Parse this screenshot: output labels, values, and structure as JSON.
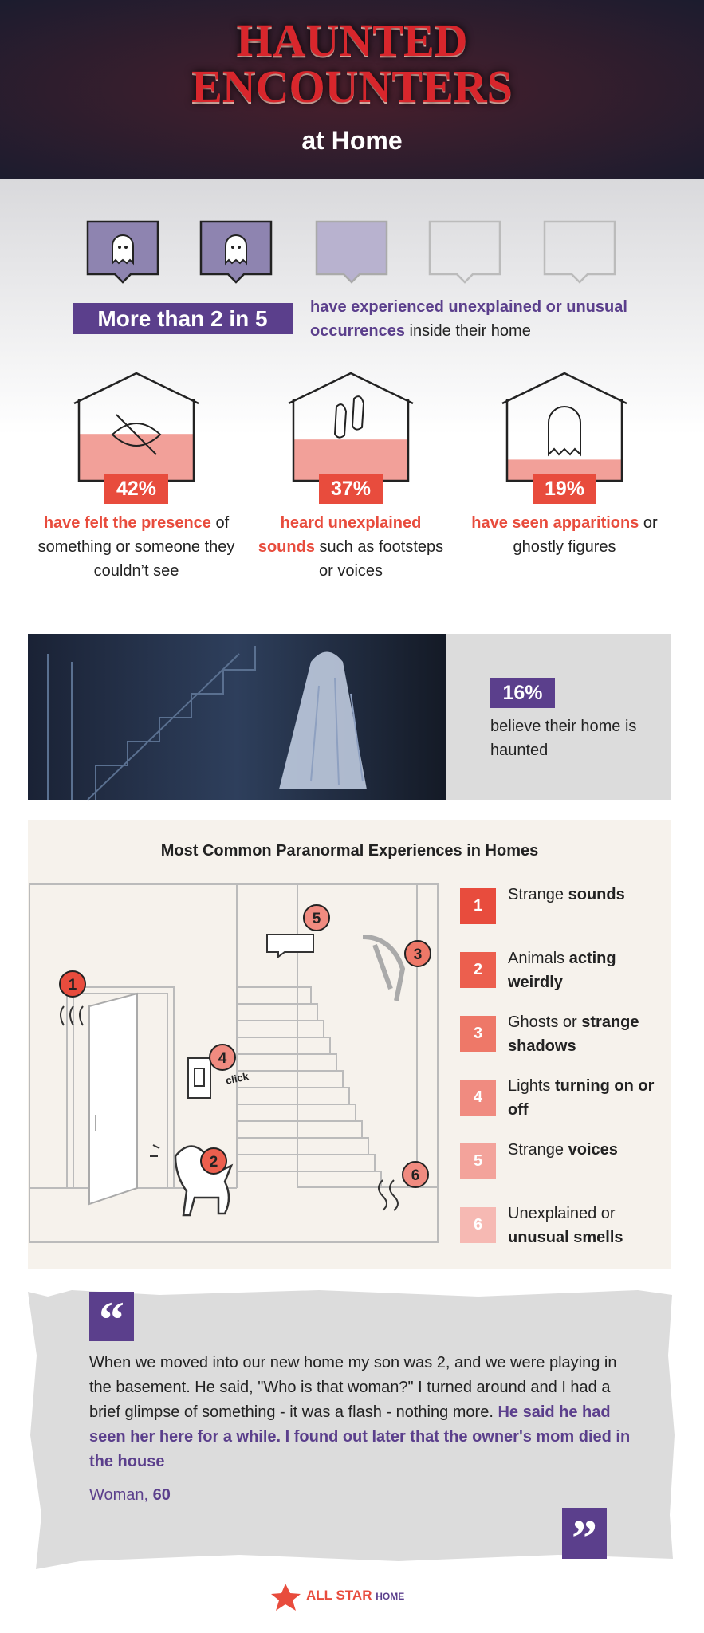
{
  "header": {
    "title_line1": "HAUNTED",
    "title_line2": "ENCOUNTERS",
    "subtitle": "at Home"
  },
  "intro": {
    "highlight": "More than 2 in 5",
    "bold": "have experienced unexplained or unusual occurrences",
    "text": " inside their home"
  },
  "stats": [
    {
      "value": 42,
      "label": "42%",
      "bold": "have felt the presence",
      "text": " of something or someone they couldn’t see"
    },
    {
      "value": 37,
      "label": "37%",
      "bold": "heard unexplained sounds",
      "text": " such as footsteps or voices"
    },
    {
      "value": 19,
      "label": "19%",
      "bold": "have seen apparitions",
      "text": " or ghostly figures"
    }
  ],
  "haunted": {
    "label": "16%",
    "text": "believe their home is haunted"
  },
  "experiences": {
    "title": "Most Common Paranormal Experiences in Homes",
    "illustration_label": "click",
    "items": [
      {
        "number": 1,
        "text": "Strange ",
        "bold": "sounds"
      },
      {
        "number": 2,
        "text": "Animals ",
        "bold": "acting weirdly"
      },
      {
        "number": 3,
        "text": "Ghosts or ",
        "bold": "strange shadows"
      },
      {
        "number": 4,
        "text": "Lights ",
        "bold": "turning on or off"
      },
      {
        "number": 5,
        "text": "Strange ",
        "bold": "voices"
      },
      {
        "number": 6,
        "text": "Unexplained or ",
        "bold": "unusual smells"
      }
    ]
  },
  "quote": {
    "open_mark": "“",
    "close_mark": "”",
    "text": "When we moved into our new home my son was 2, and we were playing in the basement. He said, \"Who is that woman?\" I turned around and I had a brief glimpse of something - it was a flash - nothing more. ",
    "bold": "He said he had seen her here for a while. I found out later that the owner's mom died in the house",
    "author": "Woman, ",
    "age": 60
  },
  "footer": {
    "brand": "ALL STAR",
    "suffix": "HOME"
  }
}
